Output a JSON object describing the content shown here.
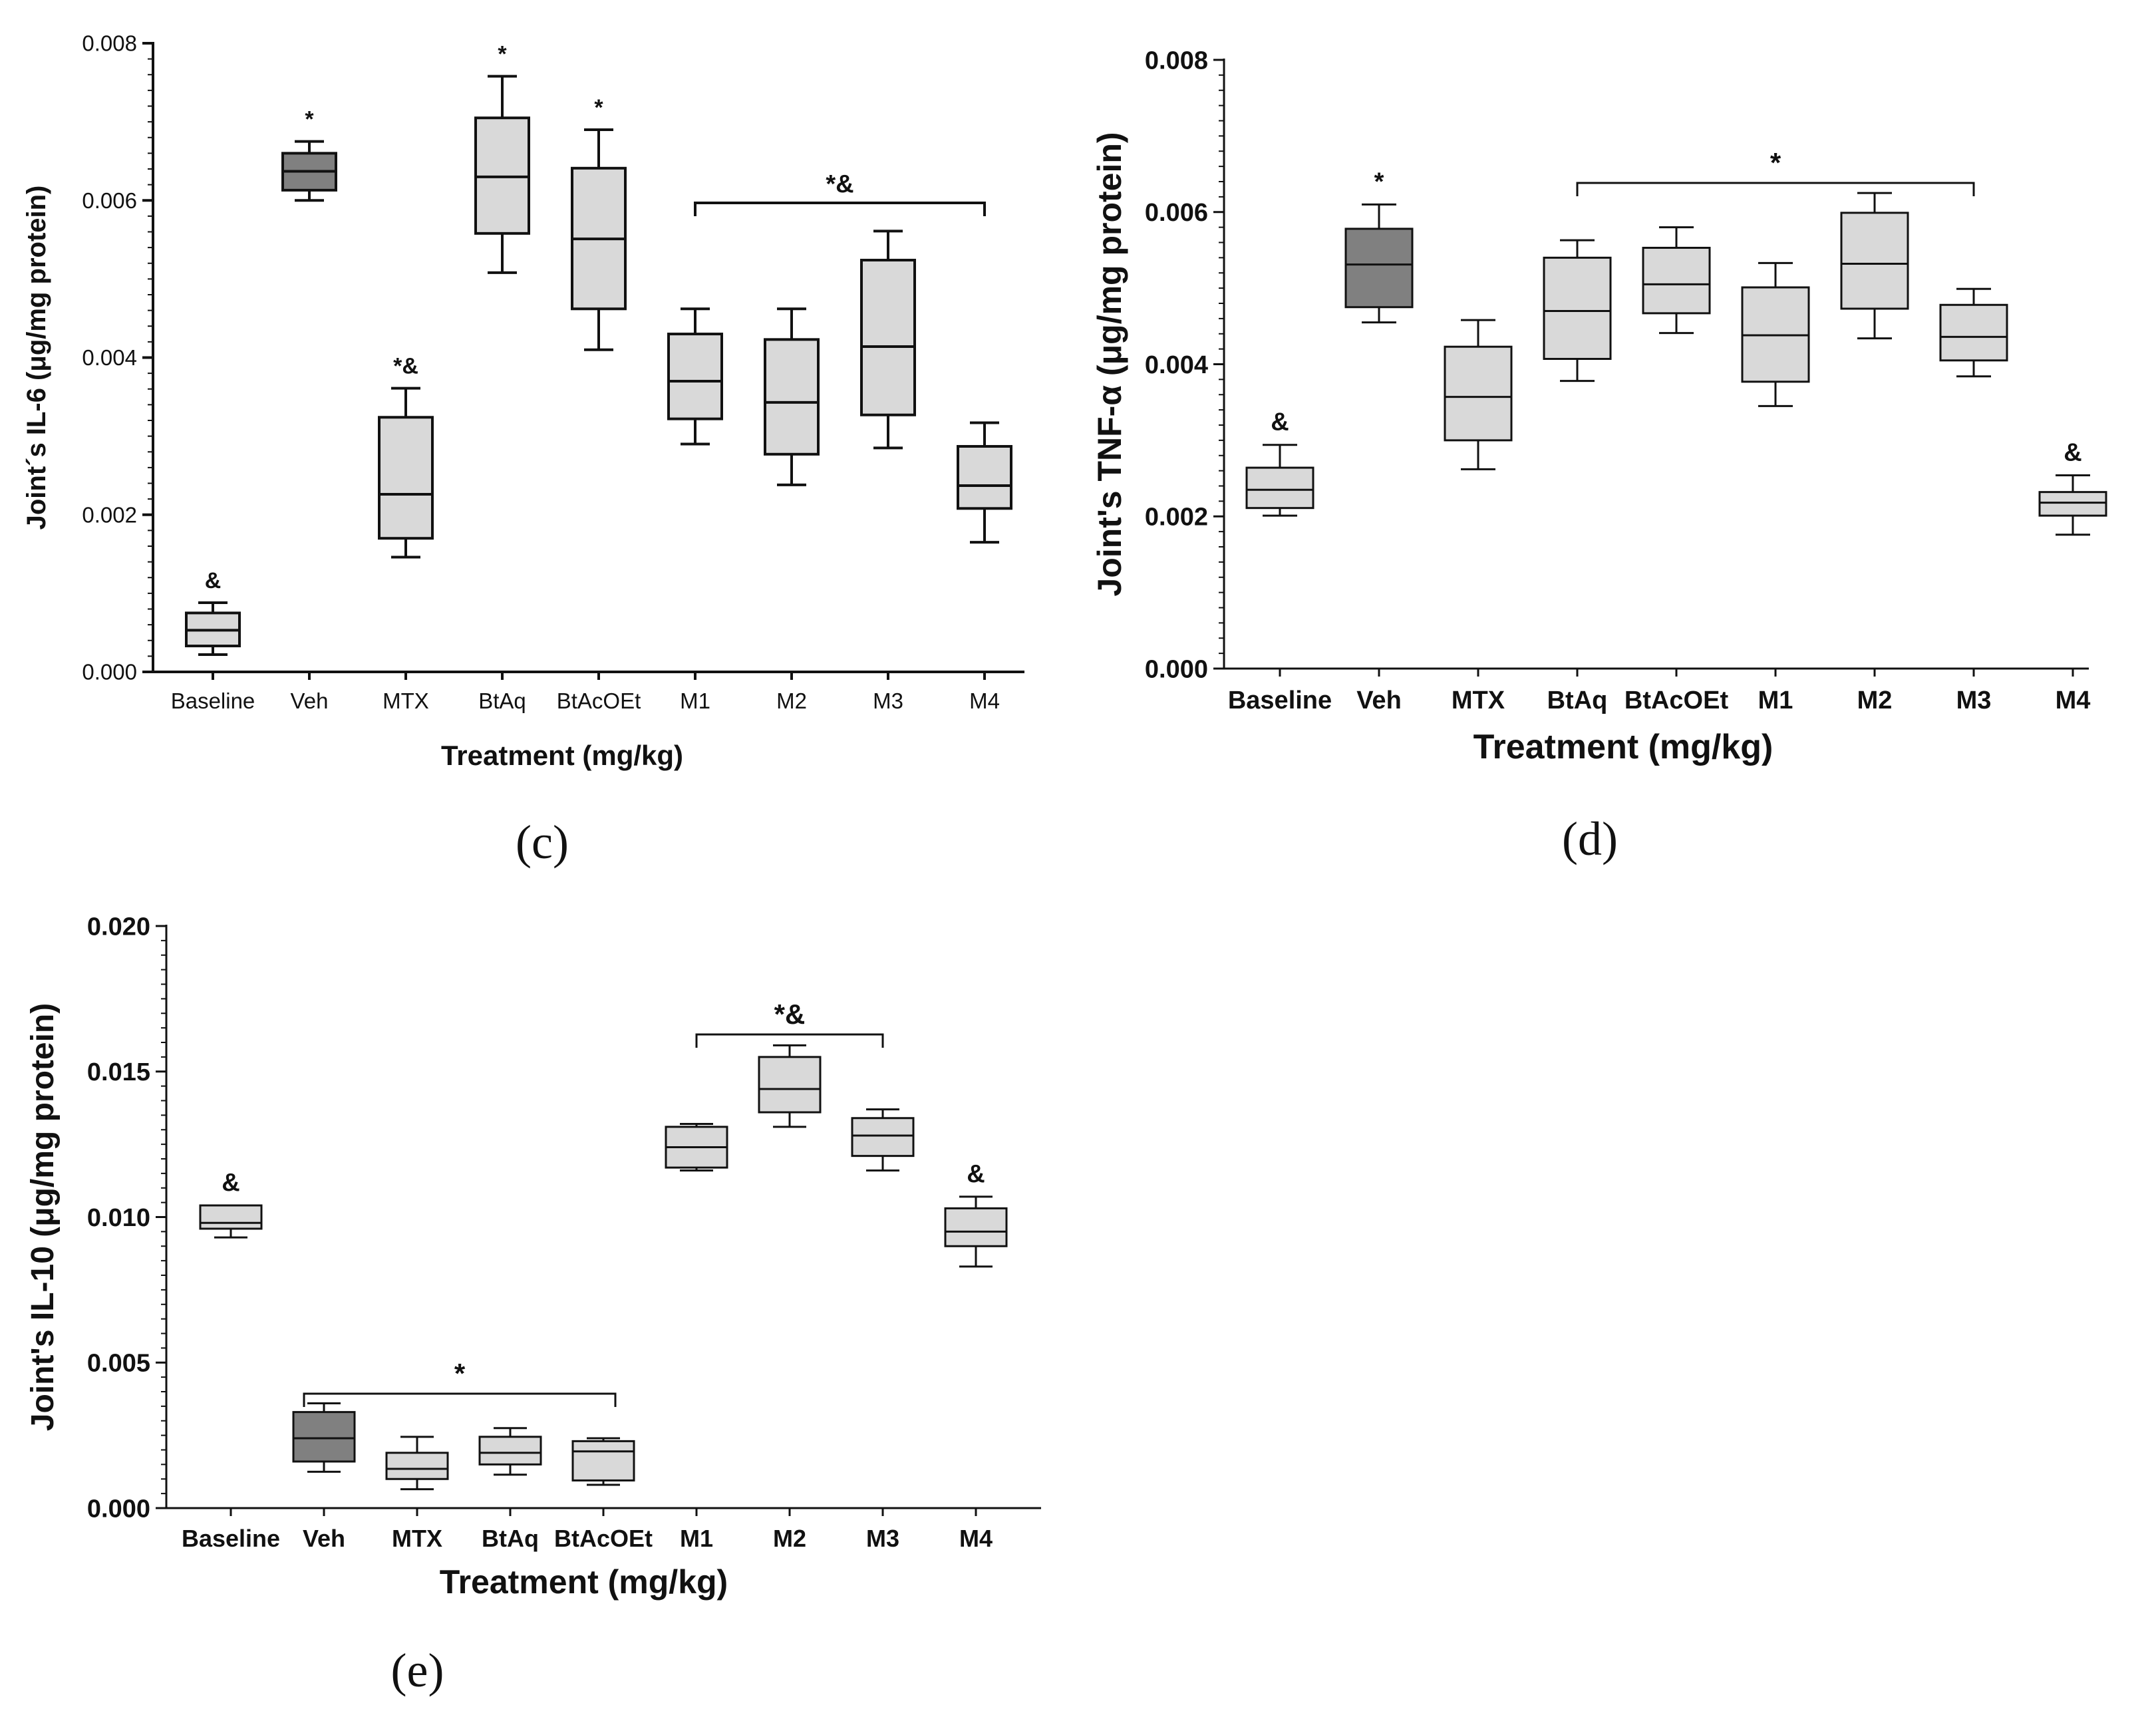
{
  "colors": {
    "box_light": "#d9d9d9",
    "box_dark": "#808080",
    "stroke": "#111111"
  },
  "chart_data": [
    {
      "type": "box",
      "panel": "(c)",
      "title": "",
      "xlabel": "Treatment (mg/kg)",
      "ylabel": "Joint´s IL-6  (μg/mg protein)",
      "ylim": [
        0,
        0.008
      ],
      "yticks": [
        "0.000",
        "0.002",
        "0.004",
        "0.006",
        "0.008"
      ],
      "categories": [
        "Baseline",
        "Veh",
        "MTX",
        "BtAq",
        "BtAcOEt",
        "M1",
        "M2",
        "M3",
        "M4"
      ],
      "boxes": [
        {
          "category": "Baseline",
          "min": 0.00022,
          "q1": 0.00033,
          "median": 0.00053,
          "q3": 0.00075,
          "max": 0.00088,
          "dark": false,
          "marker": "&"
        },
        {
          "category": "Veh",
          "min": 0.006,
          "q1": 0.00613,
          "median": 0.00637,
          "q3": 0.0066,
          "max": 0.00675,
          "dark": true,
          "marker": "*"
        },
        {
          "category": "MTX",
          "min": 0.00146,
          "q1": 0.0017,
          "median": 0.00226,
          "q3": 0.00324,
          "max": 0.00361,
          "dark": false,
          "marker": "*&"
        },
        {
          "category": "BtAq",
          "min": 0.00508,
          "q1": 0.00558,
          "median": 0.0063,
          "q3": 0.00705,
          "max": 0.00758,
          "dark": false,
          "marker": "*"
        },
        {
          "category": "BtAcOEt",
          "min": 0.0041,
          "q1": 0.00462,
          "median": 0.00551,
          "q3": 0.00641,
          "max": 0.0069,
          "dark": false,
          "marker": "*"
        },
        {
          "category": "M1",
          "min": 0.0029,
          "q1": 0.00322,
          "median": 0.0037,
          "q3": 0.0043,
          "max": 0.00462,
          "dark": false,
          "marker": ""
        },
        {
          "category": "M2",
          "min": 0.00238,
          "q1": 0.00277,
          "median": 0.00343,
          "q3": 0.00423,
          "max": 0.00462,
          "dark": false,
          "marker": ""
        },
        {
          "category": "M3",
          "min": 0.00285,
          "q1": 0.00327,
          "median": 0.00414,
          "q3": 0.00524,
          "max": 0.00561,
          "dark": false,
          "marker": ""
        },
        {
          "category": "M4",
          "min": 0.00165,
          "q1": 0.00208,
          "median": 0.00237,
          "q3": 0.00287,
          "max": 0.00317,
          "dark": false,
          "marker": ""
        }
      ],
      "bracket": {
        "from": "M1",
        "to": "M4",
        "label": "*&"
      }
    },
    {
      "type": "box",
      "panel": "(d)",
      "title": "",
      "xlabel": "Treatment (mg/kg)",
      "ylabel": "Joint's TNF-α (μg/mg protein)",
      "ylim": [
        0,
        0.008
      ],
      "yticks": [
        "0.000",
        "0.002",
        "0.004",
        "0.006",
        "0.008"
      ],
      "categories": [
        "Baseline",
        "Veh",
        "MTX",
        "BtAq",
        "BtAcOEt",
        "M1",
        "M2",
        "M3",
        "M4"
      ],
      "boxes": [
        {
          "category": "Baseline",
          "min": 0.00201,
          "q1": 0.00211,
          "median": 0.00235,
          "q3": 0.00264,
          "max": 0.00294,
          "dark": false,
          "marker": "&"
        },
        {
          "category": "Veh",
          "min": 0.00455,
          "q1": 0.00475,
          "median": 0.00531,
          "q3": 0.00578,
          "max": 0.0061,
          "dark": true,
          "marker": "*"
        },
        {
          "category": "MTX",
          "min": 0.00262,
          "q1": 0.003,
          "median": 0.00357,
          "q3": 0.00423,
          "max": 0.00458,
          "dark": false,
          "marker": ""
        },
        {
          "category": "BtAq",
          "min": 0.00378,
          "q1": 0.00407,
          "median": 0.0047,
          "q3": 0.0054,
          "max": 0.00563,
          "dark": false,
          "marker": ""
        },
        {
          "category": "BtAcOEt",
          "min": 0.00441,
          "q1": 0.00467,
          "median": 0.00505,
          "q3": 0.00553,
          "max": 0.0058,
          "dark": false,
          "marker": ""
        },
        {
          "category": "M1",
          "min": 0.00345,
          "q1": 0.00377,
          "median": 0.00438,
          "q3": 0.00501,
          "max": 0.00533,
          "dark": false,
          "marker": ""
        },
        {
          "category": "M2",
          "min": 0.00434,
          "q1": 0.00473,
          "median": 0.00532,
          "q3": 0.00599,
          "max": 0.00625,
          "dark": false,
          "marker": ""
        },
        {
          "category": "M3",
          "min": 0.00384,
          "q1": 0.00405,
          "median": 0.00436,
          "q3": 0.00478,
          "max": 0.00499,
          "dark": false,
          "marker": ""
        },
        {
          "category": "M4",
          "min": 0.00176,
          "q1": 0.00201,
          "median": 0.00218,
          "q3": 0.00232,
          "max": 0.00254,
          "dark": false,
          "marker": "&"
        }
      ],
      "bracket": {
        "from": "BtAq",
        "to": "M3",
        "label": "*"
      }
    },
    {
      "type": "box",
      "panel": "(e)",
      "title": "",
      "xlabel": "Treatment (mg/kg)",
      "ylabel": "Joint's IL-10 (μg/mg protein)",
      "ylim": [
        0,
        0.02
      ],
      "yticks": [
        "0.000",
        "0.005",
        "0.010",
        "0.015",
        "0.020"
      ],
      "categories": [
        "Baseline",
        "Veh",
        "MTX",
        "BtAq",
        "BtAcOEt",
        "M1",
        "M2",
        "M3",
        "M4"
      ],
      "boxes": [
        {
          "category": "Baseline",
          "min": 0.0093,
          "q1": 0.0096,
          "median": 0.0098,
          "q3": 0.0104,
          "max": 0.0104,
          "dark": false,
          "marker": "&"
        },
        {
          "category": "Veh",
          "min": 0.00125,
          "q1": 0.0016,
          "median": 0.0024,
          "q3": 0.0033,
          "max": 0.0036,
          "dark": true,
          "marker": ""
        },
        {
          "category": "MTX",
          "min": 0.00065,
          "q1": 0.001,
          "median": 0.00135,
          "q3": 0.0019,
          "max": 0.00245,
          "dark": false,
          "marker": ""
        },
        {
          "category": "BtAq",
          "min": 0.00115,
          "q1": 0.0015,
          "median": 0.0019,
          "q3": 0.00245,
          "max": 0.00275,
          "dark": false,
          "marker": ""
        },
        {
          "category": "BtAcOEt",
          "min": 0.0008,
          "q1": 0.00095,
          "median": 0.00195,
          "q3": 0.0023,
          "max": 0.0024,
          "dark": false,
          "marker": ""
        },
        {
          "category": "M1",
          "min": 0.0116,
          "q1": 0.0117,
          "median": 0.0124,
          "q3": 0.0131,
          "max": 0.0132,
          "dark": false,
          "marker": ""
        },
        {
          "category": "M2",
          "min": 0.0131,
          "q1": 0.0136,
          "median": 0.0144,
          "q3": 0.0155,
          "max": 0.0159,
          "dark": false,
          "marker": ""
        },
        {
          "category": "M3",
          "min": 0.0116,
          "q1": 0.0121,
          "median": 0.0128,
          "q3": 0.0134,
          "max": 0.0137,
          "dark": false,
          "marker": ""
        },
        {
          "category": "M4",
          "min": 0.0083,
          "q1": 0.009,
          "median": 0.0095,
          "q3": 0.0103,
          "max": 0.0107,
          "dark": false,
          "marker": "&"
        }
      ],
      "brackets": [
        {
          "from": "Veh",
          "to": "BtAcOEt",
          "label": "*"
        },
        {
          "from": "M1",
          "to": "M3",
          "label": "*&"
        }
      ]
    }
  ]
}
